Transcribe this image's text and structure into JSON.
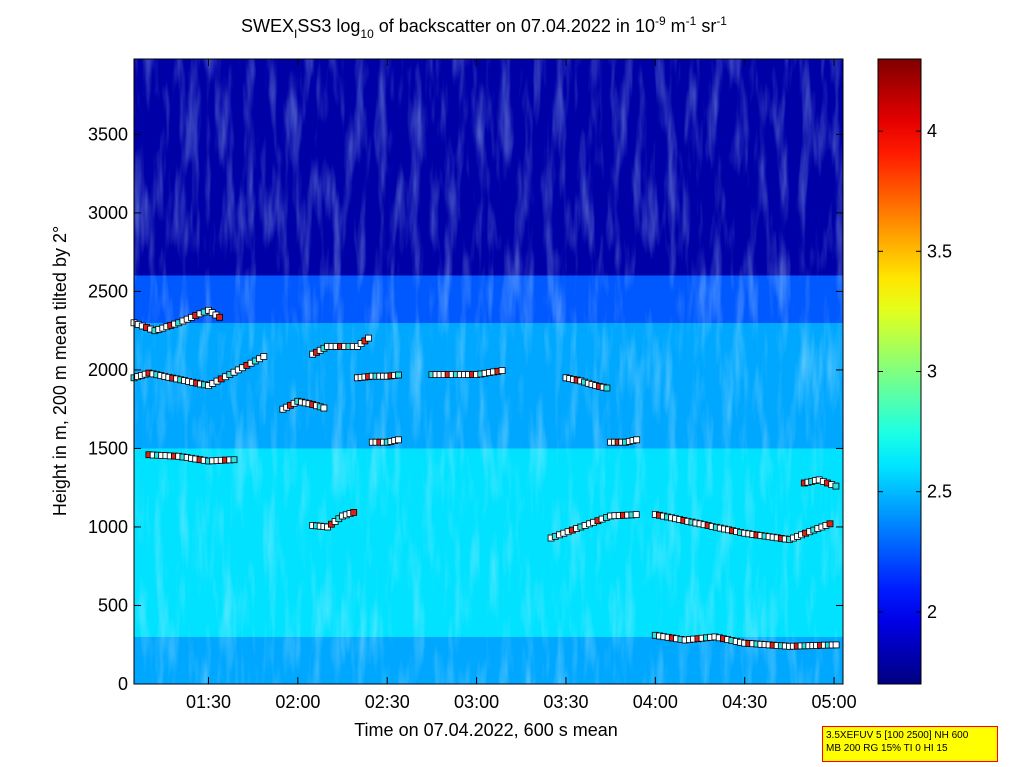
{
  "chart_data": {
    "type": "heatmap",
    "title_parts": {
      "prefix": "SWEX",
      "prefix_sub": "I",
      "mid": "SS3 log",
      "log_sub": "10",
      "rest": " of backscatter on 07.04.2022 in 10",
      "exp1": "-9",
      "unit_m": " m",
      "exp2": "-1",
      "unit_sr": " sr",
      "exp3": "-1"
    },
    "xlabel": "Time on 07.04.2022, 600 s mean",
    "ylabel": "Height in m, 200 m mean tilted by 2°",
    "x_ticks": [
      "01:30",
      "02:00",
      "02:30",
      "03:00",
      "03:30",
      "04:00",
      "04:30",
      "05:00"
    ],
    "y_ticks": [
      "0",
      "500",
      "1000",
      "1500",
      "2000",
      "2500",
      "3000",
      "3500"
    ],
    "xlim": [
      "01:05",
      "05:03"
    ],
    "ylim": [
      0,
      3980
    ],
    "colorbar": {
      "range": [
        1.7,
        4.3
      ],
      "ticks": [
        "2",
        "2.5",
        "3",
        "3.5",
        "4"
      ],
      "colormap": "jet"
    },
    "field_regions": [
      {
        "height_range": [
          0,
          300
        ],
        "log_backscatter": 2.45
      },
      {
        "height_range": [
          300,
          1500
        ],
        "log_backscatter": 2.6
      },
      {
        "height_range": [
          1500,
          2300
        ],
        "log_backscatter": 2.45
      },
      {
        "height_range": [
          2300,
          2600
        ],
        "log_backscatter": 2.25
      },
      {
        "height_range": [
          2600,
          3980
        ],
        "log_backscatter": 1.8
      }
    ],
    "cloud_base_series": [
      {
        "name": "",
        "time": [
          "01:05",
          "01:12",
          "01:20",
          "01:30",
          "01:35"
        ],
        "height": [
          2300,
          2250,
          2300,
          2380,
          2320
        ]
      },
      {
        "name": "",
        "time": [
          "01:05",
          "01:10",
          "01:30",
          "01:40",
          "01:50"
        ],
        "height": [
          1950,
          1980,
          1900,
          2000,
          2100
        ]
      },
      {
        "name": "",
        "time": [
          "01:10",
          "01:20",
          "01:30",
          "01:40"
        ],
        "height": [
          1460,
          1450,
          1420,
          1430
        ]
      },
      {
        "name": "",
        "time": [
          "01:55",
          "02:00",
          "02:05",
          "02:10"
        ],
        "height": [
          1750,
          1800,
          1780,
          1750
        ]
      },
      {
        "name": "",
        "time": [
          "02:05",
          "02:10",
          "02:20",
          "02:25"
        ],
        "height": [
          2100,
          2150,
          2150,
          2220
        ]
      },
      {
        "name": "",
        "time": [
          "02:20",
          "02:25",
          "02:30",
          "02:35"
        ],
        "height": [
          1950,
          1960,
          1960,
          1970
        ]
      },
      {
        "name": "",
        "time": [
          "02:25",
          "02:30",
          "02:35"
        ],
        "height": [
          1540,
          1540,
          1560
        ]
      },
      {
        "name": "",
        "time": [
          "02:05",
          "02:10",
          "02:15",
          "02:20"
        ],
        "height": [
          1010,
          1000,
          1070,
          1100
        ]
      },
      {
        "name": "",
        "time": [
          "02:45",
          "03:00",
          "03:10"
        ],
        "height": [
          1970,
          1970,
          2000
        ]
      },
      {
        "name": "",
        "time": [
          "03:30",
          "03:35",
          "03:40",
          "03:45"
        ],
        "height": [
          1950,
          1930,
          1900,
          1880
        ]
      },
      {
        "name": "",
        "time": [
          "03:45",
          "03:50",
          "03:55"
        ],
        "height": [
          1540,
          1540,
          1560
        ]
      },
      {
        "name": "",
        "time": [
          "03:25",
          "03:35",
          "03:45",
          "03:55"
        ],
        "height": [
          930,
          1000,
          1070,
          1080
        ]
      },
      {
        "name": "",
        "time": [
          "04:00",
          "04:15",
          "04:30",
          "04:45",
          "05:00"
        ],
        "height": [
          1080,
          1020,
          960,
          920,
          1030
        ]
      },
      {
        "name": "",
        "time": [
          "04:00",
          "04:10",
          "04:20",
          "04:30",
          "04:45",
          "05:02"
        ],
        "height": [
          310,
          280,
          300,
          260,
          240,
          250
        ]
      },
      {
        "name": "",
        "time": [
          "04:50",
          "04:55",
          "05:02"
        ],
        "height": [
          1280,
          1300,
          1250
        ]
      }
    ]
  }
}
